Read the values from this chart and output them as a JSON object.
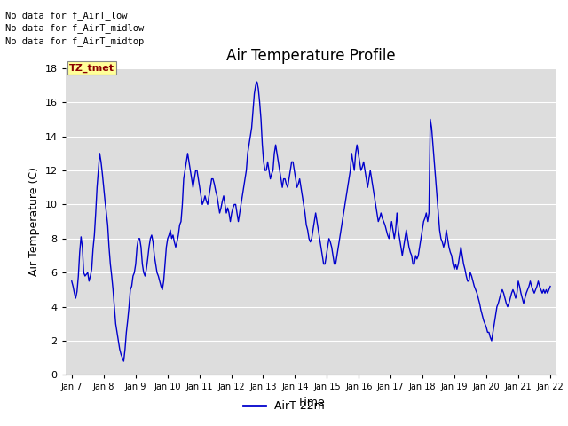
{
  "title": "Air Temperature Profile",
  "xlabel": "Time",
  "ylabel": "Air Temperature (C)",
  "ylim": [
    0,
    18
  ],
  "yticks": [
    0,
    2,
    4,
    6,
    8,
    10,
    12,
    14,
    16,
    18
  ],
  "line_color": "#0000CC",
  "line_width": 1.0,
  "bg_color": "#ffffff",
  "plot_bg_color": "#dddddd",
  "grid_color": "#ffffff",
  "annotations": [
    "No data for f_AirT_low",
    "No data for f_AirT_midlow",
    "No data for f_AirT_midtop"
  ],
  "legend_label": "AirT 22m",
  "tz_label": "TZ_tmet",
  "x_tick_labels": [
    "Jan 7",
    "Jan 8",
    "Jan 9",
    "Jan 10",
    "Jan 11",
    "Jan 12",
    "Jan 13",
    "Jan 14",
    "Jan 15",
    "Jan 16",
    "Jan 17",
    "Jan 18",
    "Jan 19",
    "Jan 20",
    "Jan 21",
    "Jan 22"
  ],
  "temperature_data": [
    5.5,
    5.2,
    4.8,
    4.5,
    4.9,
    5.8,
    7.2,
    8.1,
    7.5,
    6.0,
    5.8,
    5.9,
    6.0,
    5.5,
    5.8,
    6.2,
    7.4,
    8.2,
    9.5,
    11.0,
    12.0,
    13.0,
    12.5,
    11.8,
    11.0,
    10.2,
    9.5,
    8.8,
    7.5,
    6.5,
    5.8,
    5.0,
    4.0,
    3.0,
    2.5,
    2.0,
    1.5,
    1.2,
    1.0,
    0.8,
    1.5,
    2.5,
    3.2,
    4.0,
    5.0,
    5.2,
    5.8,
    6.0,
    6.5,
    7.5,
    8.0,
    8.0,
    7.5,
    6.5,
    6.0,
    5.8,
    6.2,
    6.8,
    7.5,
    8.0,
    8.2,
    7.8,
    7.0,
    6.5,
    6.0,
    5.8,
    5.5,
    5.2,
    5.0,
    5.5,
    6.5,
    7.5,
    8.0,
    8.2,
    8.5,
    8.0,
    8.2,
    7.8,
    7.5,
    7.8,
    8.2,
    8.8,
    9.0,
    10.0,
    11.5,
    12.0,
    12.5,
    13.0,
    12.5,
    12.0,
    11.5,
    11.0,
    11.5,
    12.0,
    12.0,
    11.5,
    11.0,
    10.5,
    10.0,
    10.2,
    10.5,
    10.2,
    10.0,
    10.5,
    11.0,
    11.5,
    11.5,
    11.2,
    10.8,
    10.5,
    10.0,
    9.5,
    9.8,
    10.2,
    10.5,
    10.0,
    9.5,
    9.8,
    9.5,
    9.0,
    9.5,
    9.8,
    10.0,
    10.0,
    9.5,
    9.0,
    9.5,
    10.0,
    10.5,
    11.0,
    11.5,
    12.0,
    13.0,
    13.5,
    14.0,
    14.5,
    15.5,
    16.5,
    17.0,
    17.2,
    16.8,
    16.0,
    15.0,
    13.5,
    12.5,
    12.0,
    12.0,
    12.5,
    12.0,
    11.5,
    11.8,
    12.0,
    13.0,
    13.5,
    13.0,
    12.5,
    12.0,
    11.5,
    11.0,
    11.5,
    11.5,
    11.2,
    11.0,
    11.5,
    12.0,
    12.5,
    12.5,
    12.0,
    11.5,
    11.0,
    11.2,
    11.5,
    11.0,
    10.5,
    10.0,
    9.5,
    8.8,
    8.5,
    8.0,
    7.8,
    8.0,
    8.5,
    9.0,
    9.5,
    9.0,
    8.5,
    8.0,
    7.5,
    7.0,
    6.5,
    6.5,
    7.0,
    7.5,
    8.0,
    7.8,
    7.5,
    7.0,
    6.5,
    6.5,
    7.0,
    7.5,
    8.0,
    8.5,
    9.0,
    9.5,
    10.0,
    10.5,
    11.0,
    11.5,
    12.0,
    13.0,
    12.5,
    12.0,
    13.0,
    13.5,
    13.0,
    12.5,
    12.0,
    12.2,
    12.5,
    12.0,
    11.5,
    11.0,
    11.5,
    12.0,
    11.5,
    11.0,
    10.5,
    10.0,
    9.5,
    9.0,
    9.2,
    9.5,
    9.2,
    9.0,
    8.8,
    8.5,
    8.2,
    8.0,
    8.5,
    9.0,
    8.5,
    8.0,
    8.5,
    9.5,
    8.5,
    8.0,
    7.5,
    7.0,
    7.5,
    8.0,
    8.5,
    8.0,
    7.5,
    7.2,
    7.0,
    6.5,
    6.5,
    7.0,
    6.8,
    7.0,
    7.5,
    8.0,
    8.5,
    9.0,
    9.2,
    9.5,
    9.0,
    9.5,
    15.0,
    14.5,
    13.5,
    12.5,
    11.5,
    10.5,
    9.5,
    8.5,
    8.0,
    7.8,
    7.5,
    7.8,
    8.5,
    8.0,
    7.5,
    7.2,
    7.0,
    6.5,
    6.2,
    6.5,
    6.2,
    6.5,
    7.0,
    7.5,
    7.0,
    6.5,
    6.2,
    5.8,
    5.5,
    5.5,
    6.0,
    5.8,
    5.5,
    5.2,
    5.0,
    4.8,
    4.5,
    4.2,
    3.8,
    3.5,
    3.2,
    3.0,
    2.8,
    2.5,
    2.5,
    2.2,
    2.0,
    2.5,
    3.0,
    3.5,
    4.0,
    4.2,
    4.5,
    4.8,
    5.0,
    4.8,
    4.5,
    4.2,
    4.0,
    4.2,
    4.5,
    4.8,
    5.0,
    4.8,
    4.5,
    4.8,
    5.5,
    5.2,
    4.8,
    4.5,
    4.2,
    4.5,
    4.8,
    5.0,
    5.2,
    5.5,
    5.2,
    5.0,
    4.8,
    5.0,
    5.2,
    5.5,
    5.2,
    5.0,
    4.8,
    5.0,
    4.8,
    5.0,
    4.8,
    5.0,
    5.2
  ]
}
